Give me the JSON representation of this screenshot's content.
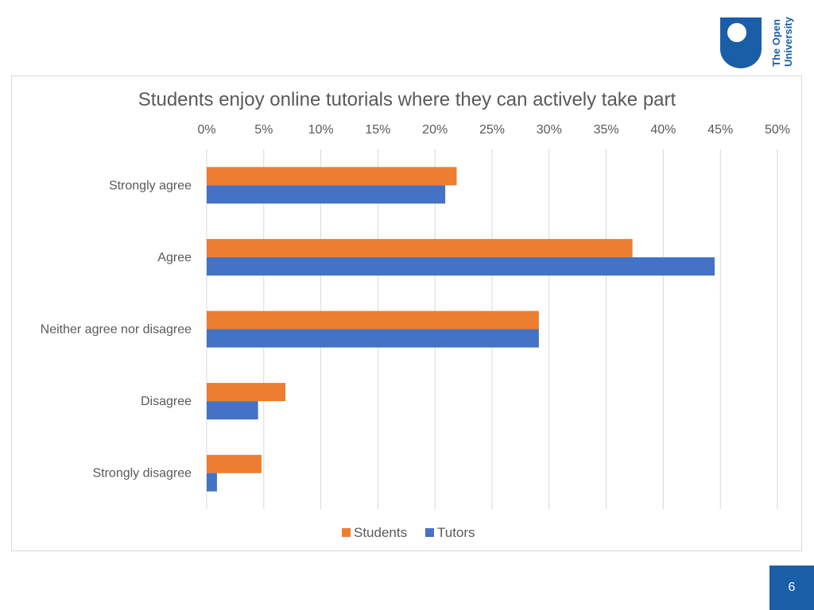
{
  "logo": {
    "line1": "The Open",
    "line2": "University",
    "color": "#1a5ea8"
  },
  "page_number": "6",
  "colors": {
    "students": "#ed7d31",
    "tutors": "#4472c4",
    "grid": "#d9d9d9",
    "text": "#595959"
  },
  "chart_data": {
    "type": "bar",
    "orientation": "horizontal",
    "title": "Students enjoy online tutorials where they can actively take part",
    "categories": [
      "Strongly agree",
      "Agree",
      "Neither agree nor disagree",
      "Disagree",
      "Strongly disagree"
    ],
    "series": [
      {
        "name": "Students",
        "values": [
          21.9,
          37.3,
          29.1,
          6.9,
          4.8
        ]
      },
      {
        "name": "Tutors",
        "values": [
          20.9,
          44.5,
          29.1,
          4.5,
          0.9
        ]
      }
    ],
    "xlim": [
      0,
      50
    ],
    "xticks": [
      0,
      5,
      10,
      15,
      20,
      25,
      30,
      35,
      40,
      45,
      50
    ],
    "tick_format": "%",
    "axis_position": "top",
    "legend_position": "bottom",
    "grid": true
  }
}
